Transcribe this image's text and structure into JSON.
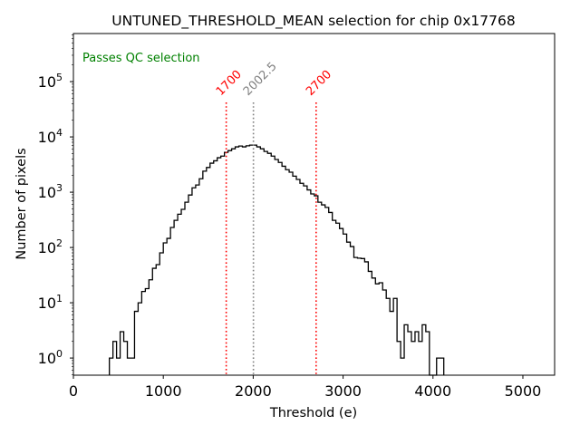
{
  "chart_data": {
    "type": "histogram",
    "title": "UNTUNED_THRESHOLD_MEAN selection for chip 0x17768",
    "xlabel": "Threshold (e)",
    "ylabel": "Number of pixels",
    "xlim": [
      0,
      5353
    ],
    "ylim_log10": [
      -0.31,
      5.87
    ],
    "yscale": "log",
    "grid": false,
    "x_ticks": [
      0,
      1000,
      2000,
      3000,
      4000,
      5000
    ],
    "x_tick_labels": [
      "0",
      "1000",
      "2000",
      "3000",
      "4000",
      "5000"
    ],
    "y_ticks_exp": [
      0,
      1,
      2,
      3,
      4,
      5
    ],
    "y_tick_base": "10",
    "bin_width": 40,
    "bin_starts": [
      400,
      440,
      480,
      520,
      560,
      600,
      640,
      680,
      720,
      760,
      800,
      840,
      880,
      920,
      960,
      1000,
      1040,
      1080,
      1120,
      1160,
      1200,
      1240,
      1280,
      1320,
      1360,
      1400,
      1440,
      1480,
      1520,
      1560,
      1600,
      1640,
      1680,
      1720,
      1760,
      1800,
      1840,
      1880,
      1920,
      1960,
      2000,
      2040,
      2080,
      2120,
      2160,
      2200,
      2240,
      2280,
      2320,
      2360,
      2400,
      2440,
      2480,
      2520,
      2560,
      2600,
      2640,
      2680,
      2720,
      2760,
      2800,
      2840,
      2880,
      2920,
      2960,
      3000,
      3040,
      3080,
      3120,
      3160,
      3200,
      3240,
      3280,
      3320,
      3360,
      3400,
      3440,
      3480,
      3520,
      3560,
      3600,
      3640,
      3680,
      3720,
      3760,
      3800,
      3840,
      3880,
      3920,
      3960,
      4000,
      4040,
      4080
    ],
    "counts": [
      1,
      2,
      1,
      3,
      2,
      1,
      1,
      7,
      10,
      16,
      18,
      26,
      42,
      49,
      80,
      121,
      146,
      230,
      310,
      400,
      490,
      660,
      890,
      1200,
      1350,
      1750,
      2400,
      2800,
      3350,
      3700,
      4200,
      4500,
      5250,
      5650,
      6100,
      6600,
      6850,
      6600,
      6900,
      7100,
      7100,
      6600,
      6100,
      5450,
      5050,
      4500,
      3900,
      3450,
      2950,
      2550,
      2300,
      1950,
      1700,
      1450,
      1300,
      1100,
      930,
      860,
      660,
      590,
      530,
      430,
      310,
      275,
      220,
      175,
      125,
      104,
      66,
      64,
      63,
      55,
      37,
      28,
      22,
      23,
      17,
      12,
      7,
      12,
      2,
      1,
      4,
      3,
      2,
      3,
      2,
      4,
      3,
      0,
      0,
      1,
      1
    ],
    "vlines": [
      {
        "x": 1700,
        "label": "1700",
        "color": "#ff0000",
        "style": "dotted"
      },
      {
        "x": 2002.5,
        "label": "2002.5",
        "color": "#808080",
        "style": "dotted"
      },
      {
        "x": 2700,
        "label": "2700",
        "color": "#ff0000",
        "style": "dotted"
      }
    ],
    "annotations": [
      {
        "text": "Passes QC selection",
        "color": "#008000",
        "position": "top-left"
      }
    ]
  }
}
